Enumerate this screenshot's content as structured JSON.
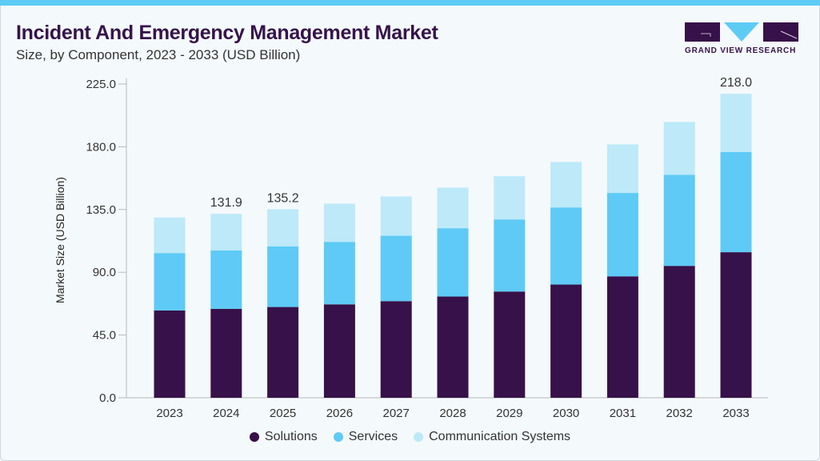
{
  "header": {
    "title": "Incident And Emergency Management Market",
    "subtitle": "Size, by Component, 2023 - 2033 (USD Billion)"
  },
  "logo": {
    "text": "GRAND VIEW RESEARCH"
  },
  "colors": {
    "solutions": "#371149",
    "services": "#5ecaf5",
    "communication": "#bde9f9",
    "accent": "#5ecbf5"
  },
  "chart_data": {
    "type": "bar",
    "stacked": true,
    "title": "Incident And Emergency Management Market",
    "xlabel": "",
    "ylabel": "Market Size (USD Billion)",
    "ylim": [
      0,
      225
    ],
    "yticks": [
      "0.0",
      "45.0",
      "90.0",
      "135.0",
      "180.0",
      "225.0"
    ],
    "categories": [
      "2023",
      "2024",
      "2025",
      "2026",
      "2027",
      "2028",
      "2029",
      "2030",
      "2031",
      "2032",
      "2033"
    ],
    "series": [
      {
        "name": "Solutions",
        "values": [
          62.6,
          63.8,
          65.1,
          67.0,
          69.3,
          72.6,
          76.2,
          81.2,
          87.1,
          94.6,
          104.4
        ]
      },
      {
        "name": "Services",
        "values": [
          41.2,
          41.9,
          43.5,
          44.8,
          46.9,
          49.0,
          51.7,
          55.3,
          59.8,
          65.3,
          71.8
        ]
      },
      {
        "name": "Communication Systems",
        "values": [
          25.5,
          26.2,
          26.6,
          27.4,
          28.2,
          29.1,
          31.0,
          32.6,
          34.8,
          37.9,
          41.8
        ]
      }
    ],
    "data_labels": [
      {
        "category": "2024",
        "text": "131.9"
      },
      {
        "category": "2025",
        "text": "135.2"
      },
      {
        "category": "2033",
        "text": "218.0"
      }
    ],
    "legend_position": "bottom",
    "grid": false
  }
}
